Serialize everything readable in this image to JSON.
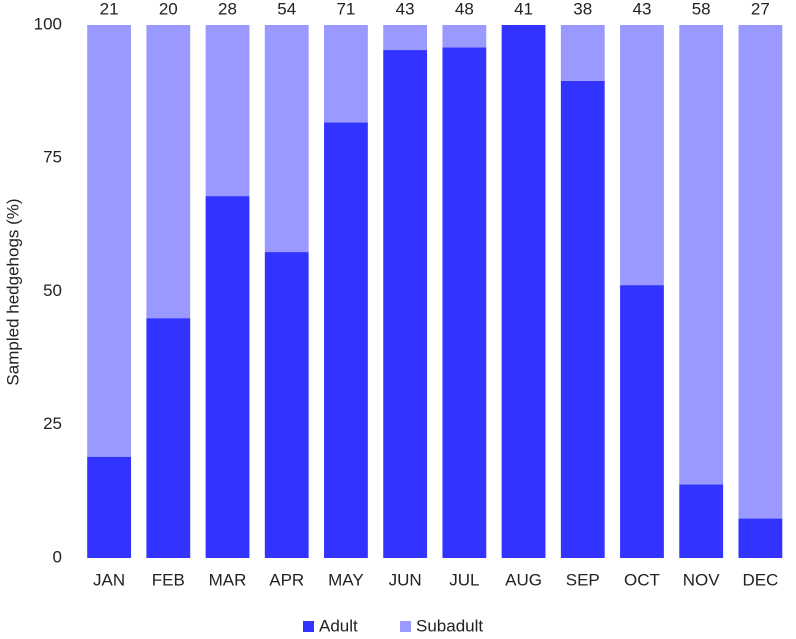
{
  "chart_data": {
    "type": "stacked_bar",
    "y_label": "Sampled hedgehogs (%)",
    "categories": [
      "JAN",
      "FEB",
      "MAR",
      "APR",
      "MAY",
      "JUN",
      "JUL",
      "AUG",
      "SEP",
      "OCT",
      "NOV",
      "DEC"
    ],
    "sample_sizes": [
      21,
      20,
      28,
      54,
      71,
      43,
      48,
      41,
      38,
      43,
      58,
      27
    ],
    "series": [
      {
        "name": "Adult",
        "color": "#3333ff",
        "values": [
          19,
          45,
          67.9,
          57.4,
          81.7,
          95.3,
          95.8,
          100,
          89.5,
          51.2,
          13.8,
          7.4
        ]
      },
      {
        "name": "Subadult",
        "color": "#9999ff",
        "values": [
          81,
          55,
          32.1,
          42.6,
          18.3,
          4.7,
          4.2,
          0,
          10.5,
          48.8,
          86.2,
          92.6
        ]
      }
    ],
    "ylim": [
      0,
      100
    ],
    "yticks": [
      0,
      25,
      50,
      75,
      100
    ],
    "grid": false,
    "legend": "bottom"
  }
}
